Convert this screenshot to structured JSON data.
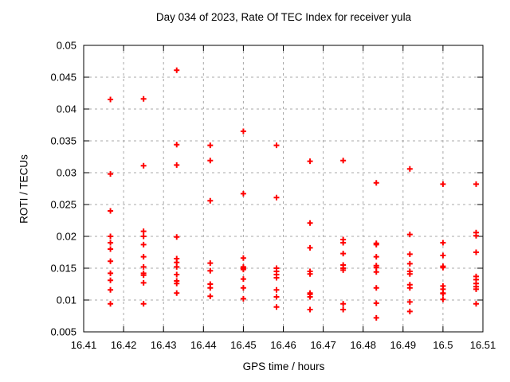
{
  "chart_data": {
    "type": "scatter",
    "title": "Day 034 of 2023, Rate Of TEC Index for receiver yula",
    "xlabel": "GPS time / hours",
    "ylabel": "ROTI / TECUs",
    "xlim": [
      16.41,
      16.51
    ],
    "ylim": [
      0.005,
      0.05
    ],
    "xticks": [
      16.41,
      16.42,
      16.43,
      16.44,
      16.45,
      16.46,
      16.47,
      16.48,
      16.49,
      16.5,
      16.51
    ],
    "xtick_labels": [
      "16.41",
      "16.42",
      "16.43",
      "16.44",
      "16.45",
      "16.46",
      "16.47",
      "16.48",
      "16.49",
      "16.5",
      "16.51"
    ],
    "yticks": [
      0.005,
      0.01,
      0.015,
      0.02,
      0.025,
      0.03,
      0.035,
      0.04,
      0.045,
      0.05
    ],
    "ytick_labels": [
      "0.005",
      "0.01",
      "0.015",
      "0.02",
      "0.025",
      "0.03",
      "0.035",
      "0.04",
      "0.045",
      "0.05"
    ],
    "grid": true,
    "legend_position": "none",
    "marker": "plus",
    "marker_color": "#ff0000",
    "grid_color": "#a8a8a8",
    "axis_color": "#000000",
    "series": [
      {
        "name": "ROTI",
        "points": [
          [
            16.4167,
            0.0415
          ],
          [
            16.4167,
            0.0298
          ],
          [
            16.4167,
            0.024
          ],
          [
            16.4167,
            0.02
          ],
          [
            16.4167,
            0.019
          ],
          [
            16.4167,
            0.018
          ],
          [
            16.4167,
            0.0161
          ],
          [
            16.4167,
            0.0142
          ],
          [
            16.4167,
            0.0131
          ],
          [
            16.4167,
            0.0116
          ],
          [
            16.4167,
            0.0094
          ],
          [
            16.425,
            0.0416
          ],
          [
            16.425,
            0.0311
          ],
          [
            16.425,
            0.0208
          ],
          [
            16.425,
            0.02
          ],
          [
            16.425,
            0.0187
          ],
          [
            16.425,
            0.0168
          ],
          [
            16.425,
            0.0152
          ],
          [
            16.425,
            0.0142
          ],
          [
            16.425,
            0.0139
          ],
          [
            16.425,
            0.0127
          ],
          [
            16.425,
            0.0094
          ],
          [
            16.4333,
            0.0461
          ],
          [
            16.4333,
            0.0344
          ],
          [
            16.4333,
            0.0312
          ],
          [
            16.4333,
            0.0199
          ],
          [
            16.4333,
            0.0165
          ],
          [
            16.4333,
            0.0159
          ],
          [
            16.4333,
            0.0152
          ],
          [
            16.4333,
            0.014
          ],
          [
            16.4333,
            0.013
          ],
          [
            16.4333,
            0.0126
          ],
          [
            16.4333,
            0.0111
          ],
          [
            16.4417,
            0.0343
          ],
          [
            16.4417,
            0.0319
          ],
          [
            16.4417,
            0.0256
          ],
          [
            16.4417,
            0.0158
          ],
          [
            16.4417,
            0.0146
          ],
          [
            16.4417,
            0.0125
          ],
          [
            16.4417,
            0.0119
          ],
          [
            16.4417,
            0.0106
          ],
          [
            16.45,
            0.0365
          ],
          [
            16.45,
            0.0267
          ],
          [
            16.45,
            0.0166
          ],
          [
            16.45,
            0.0152
          ],
          [
            16.45,
            0.015
          ],
          [
            16.45,
            0.0148
          ],
          [
            16.45,
            0.0133
          ],
          [
            16.45,
            0.0119
          ],
          [
            16.45,
            0.0102
          ],
          [
            16.4583,
            0.0343
          ],
          [
            16.4583,
            0.0261
          ],
          [
            16.4583,
            0.015
          ],
          [
            16.4583,
            0.0145
          ],
          [
            16.4583,
            0.014
          ],
          [
            16.4583,
            0.0135
          ],
          [
            16.4583,
            0.0116
          ],
          [
            16.4583,
            0.0105
          ],
          [
            16.4583,
            0.0089
          ],
          [
            16.4667,
            0.0318
          ],
          [
            16.4667,
            0.0221
          ],
          [
            16.4667,
            0.0182
          ],
          [
            16.4667,
            0.0145
          ],
          [
            16.4667,
            0.0141
          ],
          [
            16.4667,
            0.0111
          ],
          [
            16.4667,
            0.0109
          ],
          [
            16.4667,
            0.0105
          ],
          [
            16.4667,
            0.0085
          ],
          [
            16.475,
            0.0319
          ],
          [
            16.475,
            0.0195
          ],
          [
            16.475,
            0.019
          ],
          [
            16.475,
            0.0173
          ],
          [
            16.475,
            0.0155
          ],
          [
            16.475,
            0.015
          ],
          [
            16.475,
            0.0147
          ],
          [
            16.475,
            0.0094
          ],
          [
            16.475,
            0.0085
          ],
          [
            16.4833,
            0.0284
          ],
          [
            16.4833,
            0.0189
          ],
          [
            16.4833,
            0.0187
          ],
          [
            16.4833,
            0.0168
          ],
          [
            16.4833,
            0.0154
          ],
          [
            16.4833,
            0.0151
          ],
          [
            16.4833,
            0.0144
          ],
          [
            16.4833,
            0.0119
          ],
          [
            16.4833,
            0.0095
          ],
          [
            16.4833,
            0.0072
          ],
          [
            16.4917,
            0.0306
          ],
          [
            16.4917,
            0.0203
          ],
          [
            16.4917,
            0.0172
          ],
          [
            16.4917,
            0.0157
          ],
          [
            16.4917,
            0.0145
          ],
          [
            16.4917,
            0.0141
          ],
          [
            16.4917,
            0.0124
          ],
          [
            16.4917,
            0.0119
          ],
          [
            16.4917,
            0.0097
          ],
          [
            16.4917,
            0.0082
          ],
          [
            16.5,
            0.0282
          ],
          [
            16.5,
            0.019
          ],
          [
            16.5,
            0.017
          ],
          [
            16.5,
            0.0153
          ],
          [
            16.5,
            0.0151
          ],
          [
            16.5,
            0.0122
          ],
          [
            16.5,
            0.0117
          ],
          [
            16.5,
            0.0111
          ],
          [
            16.5,
            0.011
          ],
          [
            16.5,
            0.0101
          ],
          [
            16.5083,
            0.0282
          ],
          [
            16.5083,
            0.0206
          ],
          [
            16.5083,
            0.0201
          ],
          [
            16.5083,
            0.0175
          ],
          [
            16.5083,
            0.0137
          ],
          [
            16.5083,
            0.0132
          ],
          [
            16.5083,
            0.0126
          ],
          [
            16.5083,
            0.0121
          ],
          [
            16.5083,
            0.0117
          ],
          [
            16.5083,
            0.0094
          ]
        ]
      }
    ]
  }
}
